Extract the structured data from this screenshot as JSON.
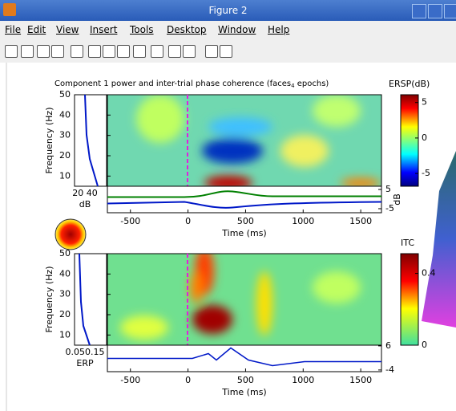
{
  "window": {
    "title": "Figure 2",
    "menu": [
      "File",
      "Edit",
      "View",
      "Insert",
      "Tools",
      "Desktop",
      "Window",
      "Help"
    ]
  },
  "figure": {
    "title": {
      "text": "Component 1 power and inter-trial phase coherence (faces",
      "subscript": "4",
      "end": " epochs)"
    },
    "panels": [
      {
        "ylabel": "Frequency (Hz)",
        "ylim": [
          5,
          50
        ],
        "yticks": [
          10,
          20,
          30,
          40,
          50
        ],
        "xlim": [
          -700,
          1680
        ],
        "xticks": [
          -500,
          0,
          500,
          1000,
          1500
        ],
        "xlabel": "Time (ms)",
        "side_ticks": "20 40",
        "side_label": "dB",
        "trace_lim": [
          -7.1,
          6.7
        ],
        "trace_ticks": [
          5,
          -5
        ],
        "trace_label": "dB",
        "colorbar_label": "ERSP(dB)",
        "clim": [
          -6.8,
          6.1
        ],
        "cticks": [
          5,
          0,
          -5
        ]
      },
      {
        "ylabel": "Frequency (Hz)",
        "ylim": [
          5,
          50
        ],
        "yticks": [
          10,
          20,
          30,
          40,
          50
        ],
        "xlim": [
          -700,
          1680
        ],
        "xticks": [
          -500,
          0,
          500,
          1000,
          1500
        ],
        "xlabel": "Time (ms)",
        "side_ticks": "0.050.15",
        "side_label": "ERP",
        "trace_lim": [
          -4.7,
          6.3
        ],
        "trace_ticks": [
          6,
          -4
        ],
        "colorbar_label": "ITC",
        "clim": [
          0,
          0.51
        ],
        "cticks": [
          0.4,
          0
        ]
      }
    ]
  }
}
